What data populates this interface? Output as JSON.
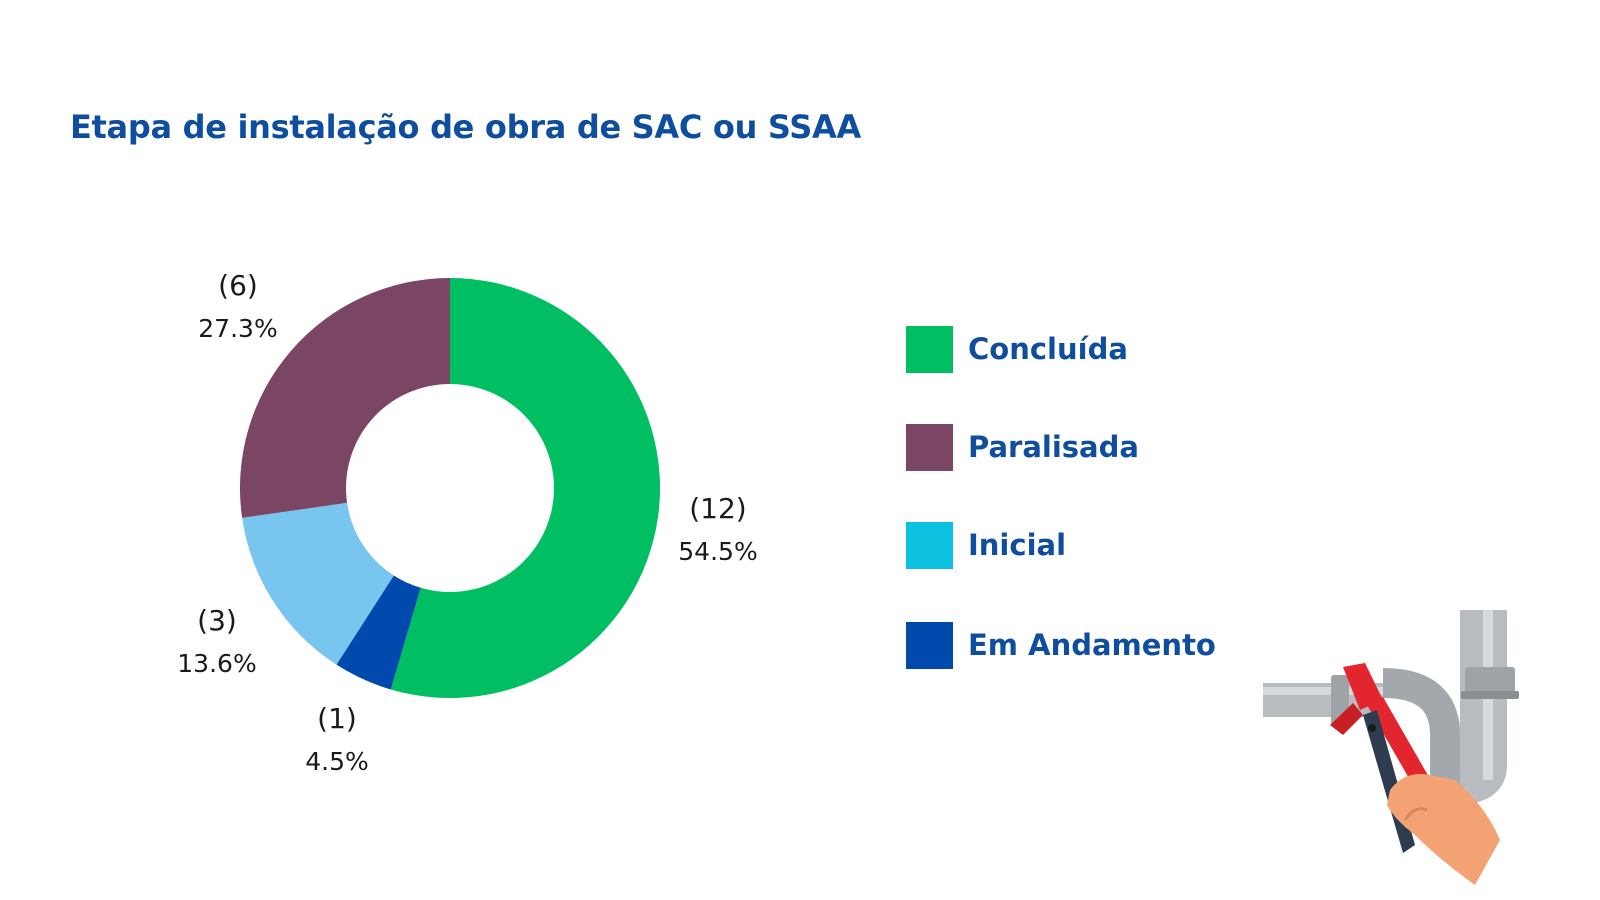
{
  "chart_data": {
    "type": "pie",
    "title": "Etapa de instalação de obra de SAC ou SSAA",
    "donut": true,
    "legend_position": "right",
    "slices": [
      {
        "label": "Concluída",
        "value": 12,
        "value_label": "(12)",
        "percent_label": "54.5%",
        "color": "#00bf63"
      },
      {
        "label": "Em Andamento",
        "value": 1,
        "value_label": "(1)",
        "percent_label": "4.5%",
        "color": "#004aad"
      },
      {
        "label": "Inicial",
        "value": 3,
        "value_label": "(3)",
        "percent_label": "13.6%",
        "color": "#78c5ef"
      },
      {
        "label": "Paralisada",
        "value": 6,
        "value_label": "(6)",
        "percent_label": "27.3%",
        "color": "#7b4663"
      }
    ],
    "legend": [
      {
        "label": "Concluída",
        "color": "#00bf63"
      },
      {
        "label": "Paralisada",
        "color": "#7b4663"
      },
      {
        "label": "Inicial",
        "color": "#0cc0df"
      },
      {
        "label": "Em Andamento",
        "color": "#004aad"
      }
    ]
  },
  "colors": {
    "title": "#0f4d9e",
    "label_text": "#1a1a1a"
  },
  "illustration": {
    "icon": "pipe-wrench-icon"
  }
}
